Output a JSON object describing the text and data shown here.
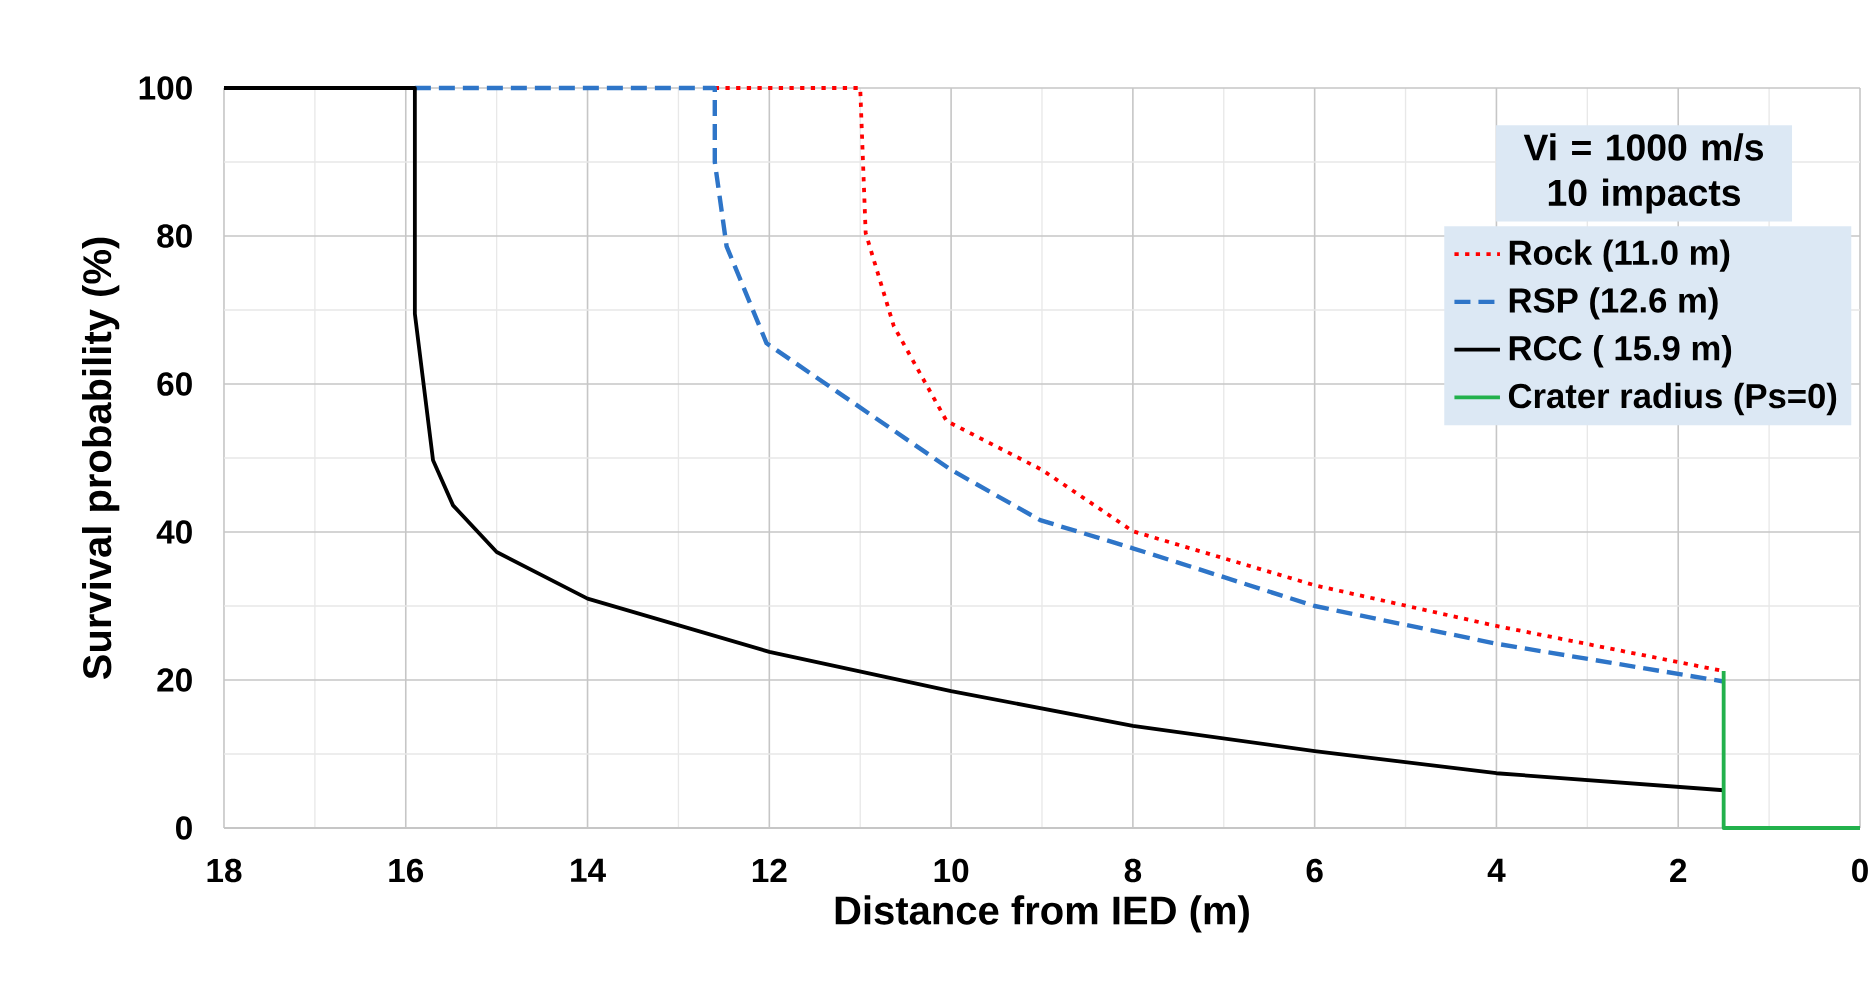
{
  "chart_data": {
    "type": "line",
    "xlabel": "Distance from IED (m)",
    "ylabel": "Survival probability (%)",
    "legend_title": "Vi = 1000 m/s 10 impacts",
    "xlim": [
      18,
      0
    ],
    "xticks": [
      18,
      16,
      14,
      12,
      10,
      8,
      6,
      4,
      2,
      0
    ],
    "ylim": [
      0,
      100
    ],
    "yticks": [
      0,
      20,
      40,
      60,
      80,
      100
    ],
    "grid": true,
    "legend": "top right",
    "marker": "none",
    "series": [
      {
        "name": "Rock (11.0 m)",
        "color": "#ff0000",
        "line_style": "dotted",
        "x": [
          12.6,
          11.0,
          10.94,
          10.63,
          10.05,
          9.0,
          8.0,
          6.0,
          4.0,
          1.5
        ],
        "values": [
          100,
          100,
          80.4,
          67.8,
          55,
          48.4,
          40.1,
          32.8,
          27.3,
          21.2
        ]
      },
      {
        "name": "RSP (12.6 m)",
        "color": "#2e75c8",
        "line_style": "dashed",
        "x": [
          15.9,
          12.6,
          12.6,
          12.47,
          12.03,
          10.0,
          9.02,
          8.0,
          6.0,
          4.0,
          1.5
        ],
        "values": [
          100,
          100,
          90,
          78.6,
          65.5,
          48.4,
          41.6,
          37.8,
          30,
          24.9,
          19.8
        ]
      },
      {
        "name": "RCC ( 15.9 m)",
        "color": "#000000",
        "line_style": "solid",
        "x": [
          18,
          15.9,
          15.9,
          15.7,
          15.48,
          15.0,
          14.0,
          12.0,
          10.0,
          8.0,
          6.0,
          4.0,
          1.5
        ],
        "values": [
          100,
          100,
          69.5,
          49.7,
          43.6,
          37.3,
          31,
          23.8,
          18.5,
          13.8,
          10.4,
          7.4,
          5.1
        ]
      },
      {
        "name": "Crater radius (Ps=0)",
        "color": "#22b14c",
        "line_style": "solid",
        "x": [
          1.5,
          1.5,
          0
        ],
        "values": [
          21.2,
          0,
          0
        ]
      }
    ]
  }
}
